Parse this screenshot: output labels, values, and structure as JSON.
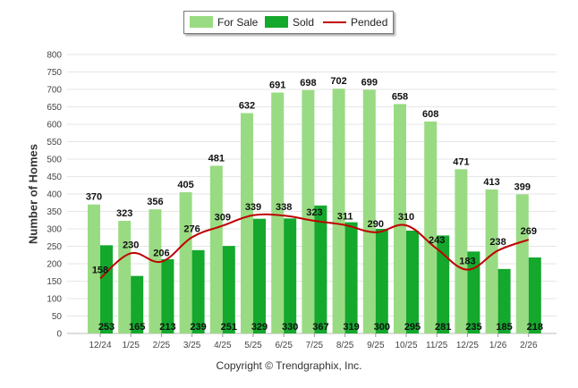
{
  "chart_data": {
    "type": "bar",
    "title": "",
    "xlabel": "",
    "ylabel": "Number of Homes",
    "ylim": [
      0,
      800
    ],
    "yticks": [
      0,
      50,
      100,
      150,
      200,
      250,
      300,
      350,
      400,
      450,
      500,
      550,
      600,
      650,
      700,
      750,
      800
    ],
    "grid": true,
    "legend_position": "top-center",
    "categories": [
      "12/24",
      "1/25",
      "2/25",
      "3/25",
      "4/25",
      "5/25",
      "6/25",
      "7/25",
      "8/25",
      "9/25",
      "10/25",
      "11/25",
      "12/25",
      "1/26",
      "2/26"
    ],
    "series": [
      {
        "name": "For Sale",
        "kind": "bar",
        "color": "#99db82",
        "values": [
          370,
          323,
          356,
          405,
          481,
          632,
          691,
          698,
          702,
          699,
          658,
          608,
          471,
          413,
          399
        ]
      },
      {
        "name": "Sold",
        "kind": "bar",
        "color": "#14a82d",
        "values": [
          253,
          165,
          213,
          239,
          251,
          329,
          330,
          367,
          319,
          300,
          295,
          281,
          235,
          185,
          218
        ]
      },
      {
        "name": "Pended",
        "kind": "line",
        "color": "#c00000",
        "values": [
          158,
          230,
          206,
          276,
          309,
          339,
          338,
          323,
          311,
          290,
          310,
          243,
          183,
          238,
          269
        ]
      }
    ]
  },
  "copyright": "Copyright © Trendgraphix, Inc."
}
